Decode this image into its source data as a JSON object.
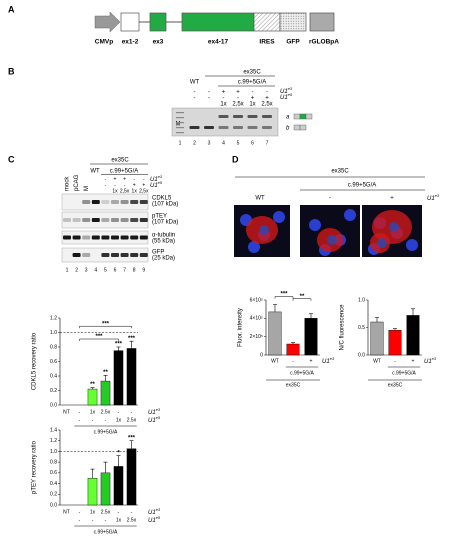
{
  "panel_a": {
    "label": "A",
    "parts": [
      "CMVp",
      "ex1-2",
      "ex3",
      "ex4-17",
      "IRES",
      "GFP",
      "rGLOBpA"
    ]
  },
  "panel_b": {
    "label": "B",
    "header": "ex35C",
    "group": "c.99+5G/A",
    "rows": [
      [
        null,
        "WT",
        null,
        null,
        null,
        null,
        null
      ],
      [
        null,
        "-",
        "-",
        "+",
        "+",
        "-",
        "-"
      ],
      [
        null,
        "-",
        "-",
        "-",
        "-",
        "+",
        "+"
      ],
      [
        null,
        null,
        null,
        "1x",
        "2,5x",
        "1x",
        "2,5x"
      ]
    ],
    "row_labels": [
      {
        "base": "U1",
        "sup": "e3"
      },
      {
        "base": "U1",
        "sup": "e5"
      }
    ],
    "marker": "M",
    "lanes": [
      "1",
      "2",
      "3",
      "4",
      "5",
      "6",
      "7"
    ],
    "bands": [
      "a",
      "b"
    ]
  },
  "panel_c": {
    "label": "C",
    "header": "ex35C",
    "wt": "WT",
    "group": "c.99+5G/A",
    "rows": [
      [
        "-",
        "+",
        "+",
        "-",
        "-"
      ],
      [
        "-",
        "-",
        "-",
        "+",
        "+"
      ],
      [
        null,
        "1x",
        "2,5x",
        "1x",
        "2,5x"
      ]
    ],
    "row_labels": [
      {
        "base": "U1",
        "sup": "e3"
      },
      {
        "base": "U1",
        "sup": "e5"
      }
    ],
    "rotated": [
      "mock",
      "pCAG",
      "M"
    ],
    "lanes": [
      "1",
      "2",
      "3",
      "4",
      "5",
      "6",
      "7",
      "8",
      "9"
    ],
    "blots": [
      [
        "CDKL5",
        "(107 kDa)"
      ],
      [
        "pTEY",
        "(107 kDa)"
      ],
      [
        "α-tubulin",
        "(55 kDa)"
      ],
      [
        "GFP",
        "(25 kDa)"
      ]
    ]
  },
  "panel_d": {
    "label": "D",
    "header": "ex35C",
    "group": "c.99+5G/A",
    "columns": [
      "WT",
      "-",
      "+"
    ],
    "row_label": {
      "base": "U1",
      "sup": "e3"
    }
  },
  "chart_data": [
    {
      "type": "bar",
      "ylabel": "CDKL5 recovery ratio",
      "categories": [
        "NT",
        "-",
        "1x",
        "2.5x",
        "-",
        "-"
      ],
      "categories2": [
        null,
        "-",
        "-",
        "-",
        "1x",
        "2.5x"
      ],
      "row_labels": [
        {
          "base": "U1",
          "sup": "e3"
        },
        {
          "base": "U1",
          "sup": "e5"
        }
      ],
      "values": [
        null,
        null,
        0.22,
        0.33,
        0.75,
        0.78
      ],
      "errors": [
        null,
        null,
        0.02,
        0.08,
        0.05,
        0.1
      ],
      "colors": [
        "#000000",
        "#000000",
        "#66ff33",
        "#22cc22",
        "#000000",
        "#000000"
      ],
      "bar_labels": [
        null,
        null,
        "**",
        "**",
        "***",
        "***"
      ],
      "brackets": [
        {
          "from": 1,
          "to": 4,
          "label": "***"
        },
        {
          "from": 1,
          "to": 5,
          "label": "***"
        }
      ],
      "group": {
        "label": "c.99+5G/A",
        "from": 1,
        "to": 5
      },
      "reference": 1,
      "ylim": [
        0,
        1.2
      ],
      "yticks": [
        {
          "value": 0,
          "label": "0.0"
        },
        0.2,
        0.4,
        0.6,
        0.8,
        {
          "value": 1,
          "label": "1.0"
        },
        1.2
      ]
    },
    {
      "type": "bar",
      "ylabel": "pTEY recovery ratio",
      "categories": [
        "NT",
        "-",
        "1x",
        "2.5x",
        "-",
        "-"
      ],
      "categories2": [
        null,
        "-",
        "-",
        "-",
        "1x",
        "2.5x"
      ],
      "row_labels": [
        {
          "base": "U1",
          "sup": "e3"
        },
        {
          "base": "U1",
          "sup": "e5"
        }
      ],
      "values": [
        null,
        null,
        0.5,
        0.6,
        0.72,
        1.05
      ],
      "errors": [
        null,
        null,
        0.17,
        0.2,
        0.2,
        0.15
      ],
      "colors": [
        "#000000",
        "#000000",
        "#66ff33",
        "#22cc22",
        "#000000",
        "#000000"
      ],
      "bar_labels": [
        null,
        null,
        null,
        null,
        "*",
        "***"
      ],
      "group": {
        "label": "c.99+5G/A",
        "from": 1,
        "to": 5
      },
      "reference": 1,
      "ylim": [
        0,
        1.4
      ],
      "yticks": [
        {
          "value": 0,
          "label": "0.0"
        },
        0.2,
        0.4,
        0.6,
        0.8,
        {
          "value": 1,
          "label": "1.0"
        },
        1.2,
        1.4
      ]
    },
    {
      "type": "bar",
      "ylabel": "Fluor. intensity",
      "categories": [
        "WT",
        "-",
        "+"
      ],
      "row_labels": [
        {
          "base": "U1",
          "sup": "e3"
        }
      ],
      "values": [
        470000,
        120000,
        400000
      ],
      "errors": [
        80000,
        15000,
        50000
      ],
      "colors": [
        "#a6a6a6",
        "#ff0000",
        "#000000"
      ],
      "brackets": [
        {
          "from": 0,
          "to": 1,
          "label": "***"
        },
        {
          "from": 1,
          "to": 2,
          "label": "**"
        }
      ],
      "group": {
        "label": "c.99+5G/A",
        "from": 1,
        "to": 2
      },
      "group2": "ex35C",
      "ylim": [
        0,
        600000
      ],
      "yticks": [
        0,
        {
          "value": 200000,
          "label": "2×10⁵"
        },
        {
          "value": 400000,
          "label": "4×10⁵"
        },
        {
          "value": 600000,
          "label": "6×10⁵"
        }
      ]
    },
    {
      "type": "bar",
      "ylabel": "N/C fluorescence",
      "categories": [
        "WT",
        "-",
        "+"
      ],
      "row_labels": [
        {
          "base": "U1",
          "sup": "e3"
        }
      ],
      "values": [
        0.6,
        0.45,
        0.72
      ],
      "errors": [
        0.08,
        0.03,
        0.12
      ],
      "colors": [
        "#a6a6a6",
        "#ff0000",
        "#000000"
      ],
      "group": {
        "label": "c.99+5G/A",
        "from": 1,
        "to": 2
      },
      "group2": "ex35C",
      "ylim": [
        0,
        1
      ],
      "yticks": [
        {
          "value": 0,
          "label": "0.0"
        },
        0.5,
        {
          "value": 1,
          "label": "1.0"
        }
      ]
    }
  ]
}
